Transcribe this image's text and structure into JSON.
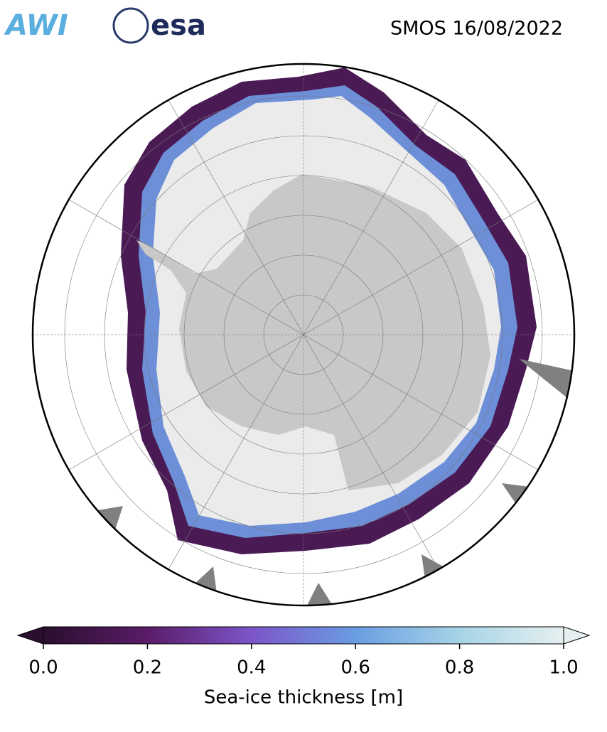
{
  "header": {
    "logos": [
      "AWI",
      "esa"
    ],
    "title": "SMOS 16/08/2022"
  },
  "colorbar": {
    "label": "Sea-ice thickness [m]",
    "lim": [
      0,
      1.0
    ],
    "ticks": [
      {
        "value": 0,
        "label": "0.0"
      },
      0.2,
      0.4,
      0.6,
      0.8,
      {
        "value": 1,
        "label": "1.0"
      }
    ],
    "colors": [
      "#2a0f2e",
      "#5a1c68",
      "#7c55c8",
      "#6a9de2",
      "#a6d4e6",
      "#e6f0f0"
    ]
  }
}
